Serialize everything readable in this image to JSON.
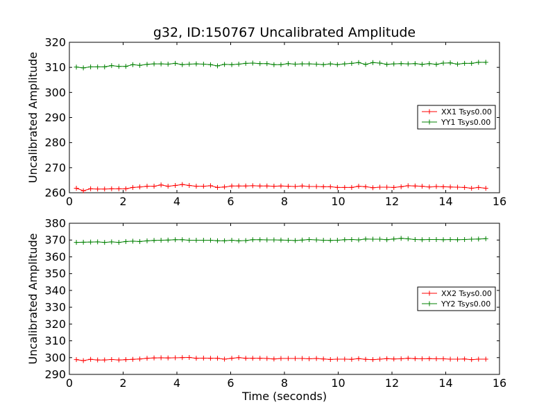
{
  "chart_data": {
    "type": "line",
    "title": "g32, ID:150767 Uncalibrated Amplitude",
    "xlabel": "Time (seconds)",
    "panels": [
      {
        "name": "top",
        "ylabel": "Uncalibrated Amplitude",
        "xlim": [
          0,
          16
        ],
        "ylim": [
          260,
          320
        ],
        "xticks": [
          0,
          2,
          4,
          6,
          8,
          10,
          12,
          14,
          16
        ],
        "yticks": [
          260,
          270,
          280,
          290,
          300,
          310,
          320
        ],
        "show_xlabel": false,
        "legend_position": "center-right",
        "series": [
          {
            "name": "XX1 Tsys0.00",
            "color": "#ff0000",
            "x": [
              0.26,
              0.52,
              0.79,
              1.05,
              1.31,
              1.57,
              1.84,
              2.1,
              2.36,
              2.62,
              2.89,
              3.15,
              3.41,
              3.67,
              3.94,
              4.2,
              4.46,
              4.72,
              4.99,
              5.25,
              5.51,
              5.77,
              6.04,
              6.3,
              6.56,
              6.82,
              7.09,
              7.35,
              7.61,
              7.87,
              8.14,
              8.4,
              8.66,
              8.92,
              9.19,
              9.45,
              9.71,
              9.97,
              10.24,
              10.5,
              10.76,
              11.02,
              11.29,
              11.55,
              11.81,
              12.07,
              12.34,
              12.6,
              12.86,
              13.12,
              13.39,
              13.65,
              13.91,
              14.17,
              14.44,
              14.7,
              14.96,
              15.22,
              15.49
            ],
            "values": [
              261.8,
              260.8,
              261.6,
              261.5,
              261.5,
              261.6,
              261.6,
              261.6,
              262.1,
              262.3,
              262.6,
              262.6,
              263.1,
              262.6,
              262.9,
              263.3,
              262.9,
              262.6,
              262.6,
              262.8,
              262.1,
              262.3,
              262.7,
              262.7,
              262.7,
              262.8,
              262.7,
              262.7,
              262.6,
              262.7,
              262.6,
              262.5,
              262.7,
              262.5,
              262.5,
              262.4,
              262.4,
              262.1,
              262.1,
              262.1,
              262.6,
              262.4,
              262.0,
              262.2,
              262.2,
              262.1,
              262.4,
              262.8,
              262.7,
              262.6,
              262.3,
              262.5,
              262.4,
              262.3,
              262.2,
              262.1,
              261.8,
              262.1,
              261.8
            ]
          },
          {
            "name": "YY1 Tsys0.00",
            "color": "#008000",
            "x": [
              0.26,
              0.52,
              0.79,
              1.05,
              1.31,
              1.57,
              1.84,
              2.1,
              2.36,
              2.62,
              2.89,
              3.15,
              3.41,
              3.67,
              3.94,
              4.2,
              4.46,
              4.72,
              4.99,
              5.25,
              5.51,
              5.77,
              6.04,
              6.3,
              6.56,
              6.82,
              7.09,
              7.35,
              7.61,
              7.87,
              8.14,
              8.4,
              8.66,
              8.92,
              9.19,
              9.45,
              9.71,
              9.97,
              10.24,
              10.5,
              10.76,
              11.02,
              11.29,
              11.55,
              11.81,
              12.07,
              12.34,
              12.6,
              12.86,
              13.12,
              13.39,
              13.65,
              13.91,
              14.17,
              14.44,
              14.7,
              14.96,
              15.22,
              15.49
            ],
            "values": [
              310.1,
              309.8,
              310.2,
              310.2,
              310.2,
              310.7,
              310.4,
              310.4,
              311.1,
              310.8,
              311.2,
              311.4,
              311.4,
              311.3,
              311.6,
              311.1,
              311.3,
              311.4,
              311.3,
              311.1,
              310.6,
              311.2,
              311.1,
              311.3,
              311.6,
              311.7,
              311.5,
              311.5,
              311.1,
              311.1,
              311.5,
              311.3,
              311.4,
              311.4,
              311.3,
              311.1,
              311.4,
              311.1,
              311.4,
              311.6,
              311.9,
              311.2,
              311.9,
              311.7,
              311.2,
              311.4,
              311.5,
              311.4,
              311.5,
              311.2,
              311.5,
              311.2,
              311.7,
              311.8,
              311.3,
              311.6,
              311.6,
              312.0,
              312.0
            ]
          }
        ]
      },
      {
        "name": "bottom",
        "ylabel": "Uncalibrated Amplitude",
        "xlim": [
          0,
          16
        ],
        "ylim": [
          290,
          380
        ],
        "xticks": [
          0,
          2,
          4,
          6,
          8,
          10,
          12,
          14,
          16
        ],
        "yticks": [
          290,
          300,
          310,
          320,
          330,
          340,
          350,
          360,
          370,
          380
        ],
        "show_xlabel": true,
        "legend_position": "center-right",
        "series": [
          {
            "name": "XX2 Tsys0.00",
            "color": "#ff0000",
            "x": [
              0.26,
              0.52,
              0.79,
              1.05,
              1.31,
              1.57,
              1.84,
              2.1,
              2.36,
              2.62,
              2.89,
              3.15,
              3.41,
              3.67,
              3.94,
              4.2,
              4.46,
              4.72,
              4.99,
              5.25,
              5.51,
              5.77,
              6.04,
              6.3,
              6.56,
              6.82,
              7.09,
              7.35,
              7.61,
              7.87,
              8.14,
              8.4,
              8.66,
              8.92,
              9.19,
              9.45,
              9.71,
              9.97,
              10.24,
              10.5,
              10.76,
              11.02,
              11.29,
              11.55,
              11.81,
              12.07,
              12.34,
              12.6,
              12.86,
              13.12,
              13.39,
              13.65,
              13.91,
              14.17,
              14.44,
              14.7,
              14.96,
              15.22,
              15.49
            ],
            "values": [
              298.8,
              298.2,
              299.0,
              298.6,
              298.6,
              298.9,
              298.6,
              298.8,
              299.0,
              299.2,
              299.6,
              299.8,
              299.9,
              299.8,
              299.9,
              300.0,
              300.1,
              299.6,
              299.7,
              299.6,
              299.6,
              299.1,
              299.6,
              300.0,
              299.6,
              299.6,
              299.6,
              299.5,
              299.2,
              299.5,
              299.5,
              299.5,
              299.5,
              299.3,
              299.5,
              299.2,
              298.9,
              299.1,
              299.1,
              299.0,
              299.4,
              299.0,
              298.8,
              299.1,
              299.4,
              299.2,
              299.3,
              299.6,
              299.4,
              299.3,
              299.4,
              299.3,
              299.3,
              299.1,
              299.1,
              299.2,
              298.8,
              299.1,
              299.1
            ]
          },
          {
            "name": "YY2 Tsys0.00",
            "color": "#008000",
            "x": [
              0.26,
              0.52,
              0.79,
              1.05,
              1.31,
              1.57,
              1.84,
              2.1,
              2.36,
              2.62,
              2.89,
              3.15,
              3.41,
              3.67,
              3.94,
              4.2,
              4.46,
              4.72,
              4.99,
              5.25,
              5.51,
              5.77,
              6.04,
              6.3,
              6.56,
              6.82,
              7.09,
              7.35,
              7.61,
              7.87,
              8.14,
              8.4,
              8.66,
              8.92,
              9.19,
              9.45,
              9.71,
              9.97,
              10.24,
              10.5,
              10.76,
              11.02,
              11.29,
              11.55,
              11.81,
              12.07,
              12.34,
              12.6,
              12.86,
              13.12,
              13.39,
              13.65,
              13.91,
              14.17,
              14.44,
              14.7,
              14.96,
              15.22,
              15.49
            ],
            "values": [
              368.6,
              368.7,
              368.8,
              368.9,
              368.6,
              368.9,
              368.6,
              369.1,
              369.3,
              369.1,
              369.5,
              369.8,
              369.9,
              370.0,
              370.2,
              370.2,
              369.9,
              369.9,
              369.9,
              369.9,
              369.6,
              369.6,
              369.9,
              369.5,
              369.7,
              370.2,
              370.2,
              370.1,
              370.1,
              370.0,
              369.9,
              369.7,
              370.0,
              370.3,
              370.1,
              369.9,
              369.8,
              369.9,
              370.2,
              370.3,
              370.1,
              370.6,
              370.5,
              370.5,
              370.2,
              370.6,
              371.0,
              370.7,
              370.3,
              370.2,
              370.3,
              370.3,
              370.2,
              370.3,
              370.2,
              370.3,
              370.5,
              370.6,
              370.8
            ]
          }
        ]
      }
    ]
  }
}
